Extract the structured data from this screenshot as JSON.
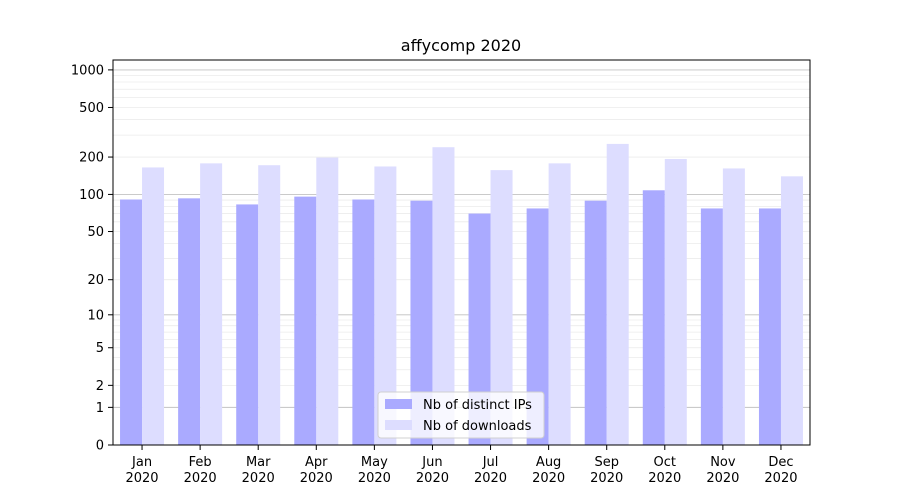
{
  "chart_data": {
    "type": "bar",
    "title": "affycomp 2020",
    "xlabel": "",
    "ylabel": "",
    "y_scale": "log(1+y)",
    "ylim": [
      0,
      1200
    ],
    "y_ticks": [
      0,
      1,
      2,
      5,
      10,
      20,
      50,
      100,
      200,
      500,
      1000
    ],
    "y_tick_labels": [
      "0",
      "1",
      "2",
      "5",
      "10",
      "20",
      "50",
      "100",
      "200",
      "500",
      "1000"
    ],
    "categories": [
      "Jan\n2020",
      "Feb\n2020",
      "Mar\n2020",
      "Apr\n2020",
      "May\n2020",
      "Jun\n2020",
      "Jul\n2020",
      "Aug\n2020",
      "Sep\n2020",
      "Oct\n2020",
      "Nov\n2020",
      "Dec\n2020"
    ],
    "category_months": [
      "Jan",
      "Feb",
      "Mar",
      "Apr",
      "May",
      "Jun",
      "Jul",
      "Aug",
      "Sep",
      "Oct",
      "Nov",
      "Dec"
    ],
    "category_years": [
      "2020",
      "2020",
      "2020",
      "2020",
      "2020",
      "2020",
      "2020",
      "2020",
      "2020",
      "2020",
      "2020",
      "2020"
    ],
    "series": [
      {
        "name": "Nb of distinct IPs",
        "color": "#aaaaff",
        "values": [
          91,
          93,
          83,
          96,
          91,
          89,
          70,
          77,
          89,
          108,
          77,
          77
        ]
      },
      {
        "name": "Nb of downloads",
        "color": "#ddddff",
        "values": [
          165,
          178,
          172,
          198,
          168,
          240,
          157,
          178,
          255,
          193,
          162,
          140
        ]
      }
    ],
    "grid": true,
    "legend_position": "bottom-center"
  }
}
